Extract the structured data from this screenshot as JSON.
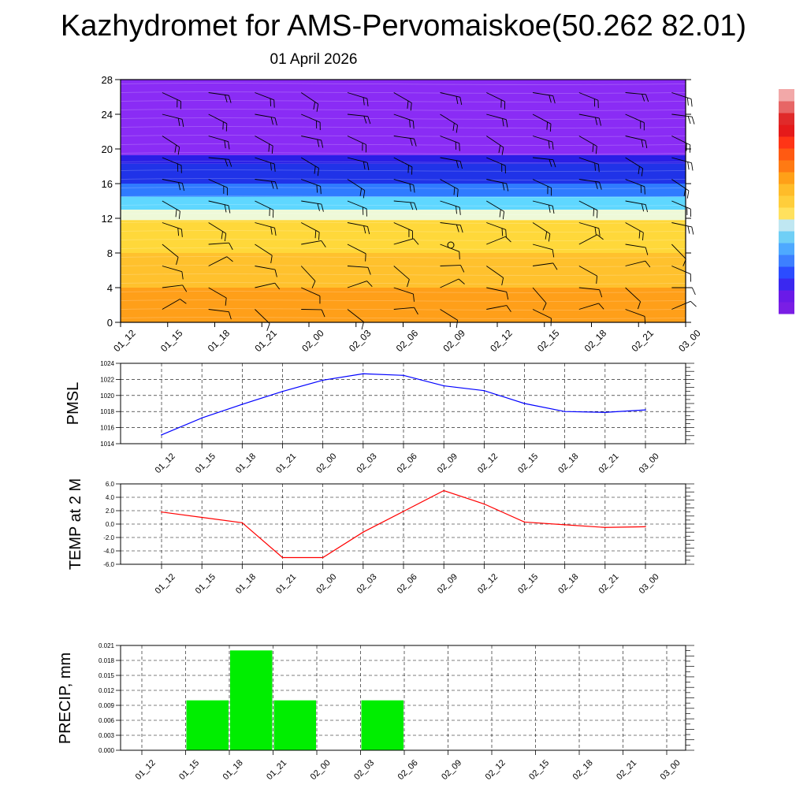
{
  "title": "Kazhydromet for AMS-Pervomaiskoe(50.262 82.01)",
  "subtitle": "01 April 2026",
  "time_labels": [
    "01_12",
    "01_15",
    "01_18",
    "01_21",
    "02_00",
    "02_03",
    "02_06",
    "02_09",
    "02_12",
    "02_15",
    "02_18",
    "02_21",
    "03_00"
  ],
  "chart_data": [
    {
      "type": "heatmap",
      "name": "temperature-wind-cross-section",
      "title": "",
      "ylabel": "",
      "ylim": [
        0,
        28
      ],
      "yticks": [
        0,
        4,
        8,
        12,
        16,
        20,
        24,
        28
      ],
      "bands": [
        {
          "from": 0,
          "to": 4,
          "color": "#ff9f19"
        },
        {
          "from": 4,
          "to": 8,
          "color": "#ffc12d"
        },
        {
          "from": 8,
          "to": 11.8,
          "color": "#ffd83a"
        },
        {
          "from": 11.8,
          "to": 13,
          "color": "#eef9d8"
        },
        {
          "from": 13,
          "to": 14.5,
          "color": "#5fd7ff"
        },
        {
          "from": 14.5,
          "to": 16,
          "color": "#2f7bff"
        },
        {
          "from": 16,
          "to": 18.3,
          "color": "#2033e8"
        },
        {
          "from": 18.3,
          "to": 19.3,
          "color": "#2a1ee6"
        },
        {
          "from": 19.3,
          "to": 28,
          "color": "#8a2cf5"
        }
      ],
      "colorbar": [
        "#7a1ee5",
        "#6a1ae8",
        "#3a28f0",
        "#2b4cff",
        "#3d7fff",
        "#4ea9ff",
        "#6fcff6",
        "#bfe7f2",
        "#ffe15e",
        "#ffce3b",
        "#ffbc29",
        "#ffa018",
        "#ff7a13",
        "#ff5a12",
        "#ff3516",
        "#e51a1a",
        "#e02a2a",
        "#e76666",
        "#f2a8a8"
      ]
    },
    {
      "type": "line",
      "name": "PMSL",
      "ylabel": "PMSL",
      "ylim": [
        1014,
        1024
      ],
      "yticks": [
        "1014",
        "1016",
        "1018",
        "1020",
        "1022",
        "1024"
      ],
      "x": [
        "01_12",
        "01_15",
        "01_18",
        "01_21",
        "02_00",
        "02_03",
        "02_06",
        "02_09",
        "02_12",
        "02_15",
        "02_18",
        "02_21",
        "03_00"
      ],
      "values": [
        1015.1,
        1017.2,
        1018.9,
        1020.5,
        1021.9,
        1022.7,
        1022.5,
        1021.2,
        1020.6,
        1019.0,
        1018.0,
        1017.9,
        1018.2
      ],
      "color": "#0000ff"
    },
    {
      "type": "line",
      "name": "TEMP at 2 M",
      "ylabel": "TEMP at 2 M",
      "ylim": [
        -6,
        6
      ],
      "yticks": [
        "-6.0",
        "-4.0",
        "-2.0",
        "0.0",
        "2.0",
        "4.0",
        "6.0"
      ],
      "x": [
        "01_12",
        "01_15",
        "01_18",
        "01_21",
        "02_00",
        "02_03",
        "02_06",
        "02_09",
        "02_12",
        "02_15",
        "02_18",
        "02_21",
        "03_00"
      ],
      "values": [
        1.8,
        1.0,
        0.2,
        -5.0,
        -5.0,
        -1.2,
        1.9,
        5.0,
        3.0,
        0.3,
        -0.1,
        -0.5,
        -0.4
      ],
      "color": "#ff0000"
    },
    {
      "type": "bar",
      "name": "PRECIP, mm",
      "ylabel": "PRECIP, mm",
      "ylim": [
        0,
        0.021
      ],
      "yticks": [
        "0.000",
        "0.003",
        "0.006",
        "0.009",
        "0.012",
        "0.015",
        "0.018",
        "0.021"
      ],
      "categories": [
        "01_12",
        "01_15",
        "01_18",
        "01_21",
        "02_00",
        "02_03",
        "02_06",
        "02_09",
        "02_12",
        "02_15",
        "02_18",
        "02_21",
        "03_00"
      ],
      "values": [
        0,
        0.01,
        0.02,
        0.01,
        0,
        0.01,
        0,
        0,
        0,
        0,
        0,
        0,
        0
      ],
      "color": "#00ee00"
    }
  ]
}
